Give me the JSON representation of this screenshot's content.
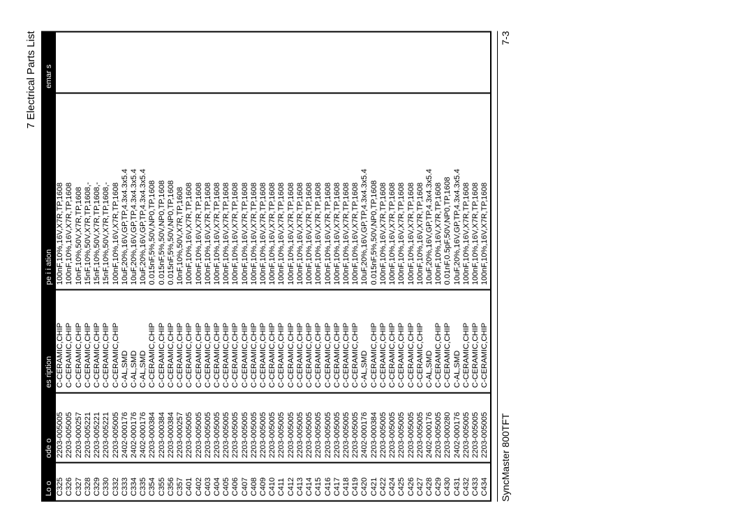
{
  "header": {
    "section_title": "7 Electrical Parts List"
  },
  "table": {
    "columns": {
      "loc": "Lo   o",
      "code": "ode   o",
      "desc": "es ription",
      "spec": "pe i i ation",
      "remarks": "emar s"
    },
    "rows": [
      {
        "loc": "C325",
        "code": "2203-005005",
        "desc": "C-CERAMIC,CHIP",
        "spec": "100nF,10%,16V,X7R,TP,1608",
        "rem": ""
      },
      {
        "loc": "C326",
        "code": "2203-005005",
        "desc": "C-CERAMIC,CHIP",
        "spec": "100nF,10%,16V,X7R,TP,1608",
        "rem": ""
      },
      {
        "loc": "C327",
        "code": "2203-000257",
        "desc": "C-CERAMIC,CHIP",
        "spec": "10nF,10%,50V,X7R,TP,1608",
        "rem": ""
      },
      {
        "loc": "C328",
        "code": "2203-005221",
        "desc": "C-CERAMIC,CHIP",
        "spec": "15nF,10%,50V,X7R,TP,1608,-",
        "rem": ""
      },
      {
        "loc": "C329",
        "code": "2203-005221",
        "desc": "C-CERAMIC,CHIP",
        "spec": "15nF,10%,50V,X7R,TP,1608,-",
        "rem": ""
      },
      {
        "loc": "C330",
        "code": "2203-005221",
        "desc": "C-CERAMIC,CHIP",
        "spec": "15nF,10%,50V,X7R,TP,1608,-",
        "rem": ""
      },
      {
        "loc": "C332",
        "code": "2203-005005",
        "desc": "C-CERAMIC,CHIP",
        "spec": "100nF,10%,16V,X7R,TP,1608",
        "rem": ""
      },
      {
        "loc": "C333",
        "code": "2402-000176",
        "desc": "C-AL,SMD",
        "spec": "10uF,20%,16V,GP,TP,4.3x4.3x5.4",
        "rem": ""
      },
      {
        "loc": "C334",
        "code": "2402-000176",
        "desc": "C-AL,SMD",
        "spec": "10uF,20%,16V,GP,TP,4.3x4.3x5.4",
        "rem": ""
      },
      {
        "loc": "C335",
        "code": "2402-000176",
        "desc": "C-AL,SMD",
        "spec": "10uF,20%,16V,GP,TP,4.3x4.3x5.4",
        "rem": ""
      },
      {
        "loc": "C354",
        "code": "2203-000384",
        "desc": "C-CERAMIC,CHIP",
        "spec": "0.015nF,5%,50V,NP0,TP,1608",
        "rem": ""
      },
      {
        "loc": "C355",
        "code": "2203-000384",
        "desc": "C-CERAMIC,CHIP",
        "spec": "0.015nF,5%,50V,NP0,TP,1608",
        "rem": ""
      },
      {
        "loc": "C356",
        "code": "2203-000384",
        "desc": "C-CERAMIC,CHIP",
        "spec": "0.015nF,5%,50V,NP0,TP,1608",
        "rem": ""
      },
      {
        "loc": "C357",
        "code": "2203-000257",
        "desc": "C-CERAMIC,CHIP",
        "spec": "10nF,10%,50V,X7R,TP,1608",
        "rem": ""
      },
      {
        "loc": "C401",
        "code": "2203-005005",
        "desc": "C-CERAMIC,CHIP",
        "spec": "100nF,10%,16V,X7R,TP,1608",
        "rem": ""
      },
      {
        "loc": "C402",
        "code": "2203-005005",
        "desc": "C-CERAMIC,CHIP",
        "spec": "100nF,10%,16V,X7R,TP,1608",
        "rem": ""
      },
      {
        "loc": "C403",
        "code": "2203-005005",
        "desc": "C-CERAMIC,CHIP",
        "spec": "100nF,10%,16V,X7R,TP,1608",
        "rem": ""
      },
      {
        "loc": "C404",
        "code": "2203-005005",
        "desc": "C-CERAMIC,CHIP",
        "spec": "100nF,10%,16V,X7R,TP,1608",
        "rem": ""
      },
      {
        "loc": "C405",
        "code": "2203-005005",
        "desc": "C-CERAMIC,CHIP",
        "spec": "100nF,10%,16V,X7R,TP,1608",
        "rem": ""
      },
      {
        "loc": "C406",
        "code": "2203-005005",
        "desc": "C-CERAMIC,CHIP",
        "spec": "100nF,10%,16V,X7R,TP,1608",
        "rem": ""
      },
      {
        "loc": "C407",
        "code": "2203-005005",
        "desc": "C-CERAMIC,CHIP",
        "spec": "100nF,10%,16V,X7R,TP,1608",
        "rem": ""
      },
      {
        "loc": "C408",
        "code": "2203-005005",
        "desc": "C-CERAMIC,CHIP",
        "spec": "100nF,10%,16V,X7R,TP,1608",
        "rem": ""
      },
      {
        "loc": "C409",
        "code": "2203-005005",
        "desc": "C-CERAMIC,CHIP",
        "spec": "100nF,10%,16V,X7R,TP,1608",
        "rem": ""
      },
      {
        "loc": "C410",
        "code": "2203-005005",
        "desc": "C-CERAMIC,CHIP",
        "spec": "100nF,10%,16V,X7R,TP,1608",
        "rem": ""
      },
      {
        "loc": "C411",
        "code": "2203-005005",
        "desc": "C-CERAMIC,CHIP",
        "spec": "100nF,10%,16V,X7R,TP,1608",
        "rem": ""
      },
      {
        "loc": "C412",
        "code": "2203-005005",
        "desc": "C-CERAMIC,CHIP",
        "spec": "100nF,10%,16V,X7R,TP,1608",
        "rem": ""
      },
      {
        "loc": "C413",
        "code": "2203-005005",
        "desc": "C-CERAMIC,CHIP",
        "spec": "100nF,10%,16V,X7R,TP,1608",
        "rem": ""
      },
      {
        "loc": "C414",
        "code": "2203-005005",
        "desc": "C-CERAMIC,CHIP",
        "spec": "100nF,10%,16V,X7R,TP,1608",
        "rem": ""
      },
      {
        "loc": "C415",
        "code": "2203-005005",
        "desc": "C-CERAMIC,CHIP",
        "spec": "100nF,10%,16V,X7R,TP,1608",
        "rem": ""
      },
      {
        "loc": "C416",
        "code": "2203-005005",
        "desc": "C-CERAMIC,CHIP",
        "spec": "100nF,10%,16V,X7R,TP,1608",
        "rem": ""
      },
      {
        "loc": "C417",
        "code": "2203-005005",
        "desc": "C-CERAMIC,CHIP",
        "spec": "100nF,10%,16V,X7R,TP,1608",
        "rem": ""
      },
      {
        "loc": "C418",
        "code": "2203-005005",
        "desc": "C-CERAMIC,CHIP",
        "spec": "100nF,10%,16V,X7R,TP,1608",
        "rem": ""
      },
      {
        "loc": "C419",
        "code": "2203-005005",
        "desc": "C-CERAMIC,CHIP",
        "spec": "100nF,10%,16V,X7R,TP,1608",
        "rem": ""
      },
      {
        "loc": "C420",
        "code": "2402-000176",
        "desc": "C-AL,SMD",
        "spec": "10uF,20%,16V,GP,TP,4.3x4.3x5.4",
        "rem": ""
      },
      {
        "loc": "C421",
        "code": "2203-000384",
        "desc": "C-CERAMIC,CHIP",
        "spec": "0.015nF,5%,50V,NP0,TP,1608",
        "rem": ""
      },
      {
        "loc": "C422",
        "code": "2203-005005",
        "desc": "C-CERAMIC,CHIP",
        "spec": "100nF,10%,16V,X7R,TP,1608",
        "rem": ""
      },
      {
        "loc": "C424",
        "code": "2203-005005",
        "desc": "C-CERAMIC,CHIP",
        "spec": "100nF,10%,16V,X7R,TP,1608",
        "rem": ""
      },
      {
        "loc": "C425",
        "code": "2203-005005",
        "desc": "C-CERAMIC,CHIP",
        "spec": "100nF,10%,16V,X7R,TP,1608",
        "rem": ""
      },
      {
        "loc": "C426",
        "code": "2203-005005",
        "desc": "C-CERAMIC,CHIP",
        "spec": "100nF,10%,16V,X7R,TP,1608",
        "rem": ""
      },
      {
        "loc": "C427",
        "code": "2203-005005",
        "desc": "C-CERAMIC,CHIP",
        "spec": "100nF,10%,16V,X7R,TP,1608",
        "rem": ""
      },
      {
        "loc": "C428",
        "code": "2402-000176",
        "desc": "C-AL,SMD",
        "spec": "10uF,20%,16V,GP,TP,4.3x4.3x5.4",
        "rem": ""
      },
      {
        "loc": "C429",
        "code": "2203-005005",
        "desc": "C-CERAMIC,CHIP",
        "spec": "100nF,10%,16V,X7R,TP,1608",
        "rem": ""
      },
      {
        "loc": "C430",
        "code": "2203-000280",
        "desc": "C-CERAMIC,CHIP",
        "spec": "0.01nF,0.5pF,50V,NP0,TP,1608",
        "rem": ""
      },
      {
        "loc": "C431",
        "code": "2402-000176",
        "desc": "C-AL,SMD",
        "spec": "10uF,20%,16V,GP,TP,4.3x4.3x5.4",
        "rem": ""
      },
      {
        "loc": "C432",
        "code": "2203-005005",
        "desc": "C-CERAMIC,CHIP",
        "spec": "100nF,10%,16V,X7R,TP,1608",
        "rem": ""
      },
      {
        "loc": "C433",
        "code": "2203-005005",
        "desc": "C-CERAMIC,CHIP",
        "spec": "100nF,10%,16V,X7R,TP,1608",
        "rem": ""
      },
      {
        "loc": "C434",
        "code": "2203-005005",
        "desc": "C-CERAMIC,CHIP",
        "spec": "100nF,10%,16V,X7R,TP,1608",
        "rem": ""
      }
    ]
  },
  "footer": {
    "model": "SyncMaster 800TFT",
    "page_number": "7-3"
  }
}
